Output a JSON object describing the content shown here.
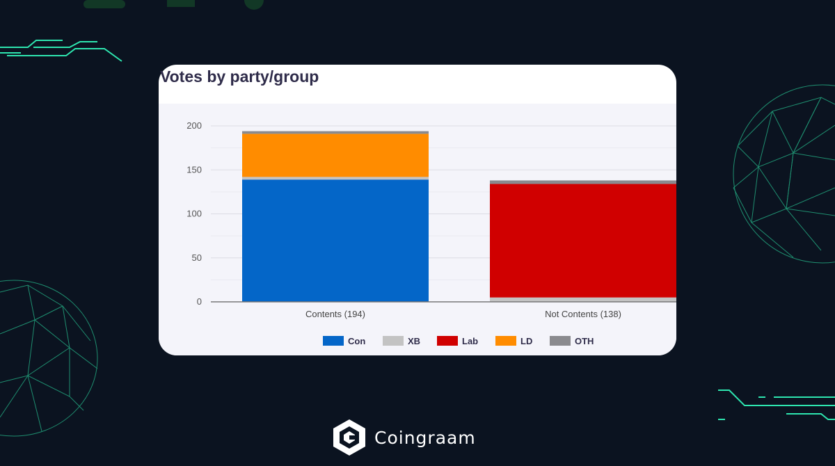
{
  "colors": {
    "background": "#0b1320",
    "accent_green": "#2ee6b0",
    "Con": "#0466c8",
    "XB": "#c3c3c3",
    "Lab": "#d00000",
    "LD": "#ff8c00",
    "OTH": "#8a8a8e"
  },
  "brand": {
    "name": "Coingraam",
    "logo_icon": "coingraam-hexagon-logo-icon"
  },
  "chart_data": {
    "type": "bar",
    "stacked": true,
    "title": "Votes by party/group",
    "categories": [
      "Contents (194)",
      "Not Contents (138)"
    ],
    "series": [
      {
        "name": "Con",
        "values": [
          139,
          0
        ]
      },
      {
        "name": "XB",
        "values": [
          3,
          5
        ]
      },
      {
        "name": "Lab",
        "values": [
          0,
          129
        ]
      },
      {
        "name": "LD",
        "values": [
          49,
          0
        ]
      },
      {
        "name": "OTH",
        "values": [
          3,
          4
        ]
      }
    ],
    "ylim": [
      0,
      200
    ],
    "yticks": [
      0,
      50,
      100,
      150,
      200
    ],
    "xlabel": "",
    "ylabel": "",
    "grid": true,
    "legend": "bottom"
  }
}
